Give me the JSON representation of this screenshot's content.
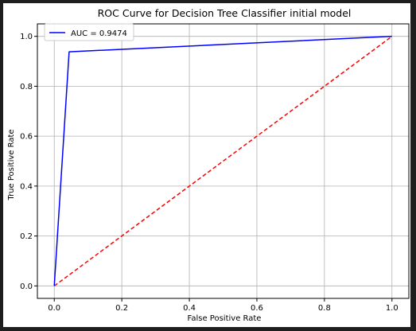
{
  "colors": {
    "roc_line": "#0000ff",
    "chance_line": "#ff0000",
    "grid": "#b0b0b0",
    "axes": "#000000"
  },
  "chart_data": {
    "type": "line",
    "title": "ROC Curve for Decision Tree Classifier initial model",
    "xlabel": "False Positive Rate",
    "ylabel": "True Positive Rate",
    "xlim": [
      -0.05,
      1.05
    ],
    "ylim": [
      -0.05,
      1.05
    ],
    "grid": true,
    "legend_position": "top-left",
    "x_ticks": [
      "0.0",
      "0.2",
      "0.4",
      "0.6",
      "0.8",
      "1.0"
    ],
    "y_ticks": [
      "0.0",
      "0.2",
      "0.4",
      "0.6",
      "0.8",
      "1.0"
    ],
    "series": [
      {
        "name": "AUC = 0.9474",
        "color": "#0000ff",
        "style": "solid",
        "x": [
          0.0,
          0.044,
          1.0
        ],
        "y": [
          0.0,
          0.938,
          1.0
        ]
      },
      {
        "name": "",
        "color": "#ff0000",
        "style": "dashed",
        "x": [
          0.0,
          1.0
        ],
        "y": [
          0.0,
          1.0
        ]
      }
    ]
  }
}
